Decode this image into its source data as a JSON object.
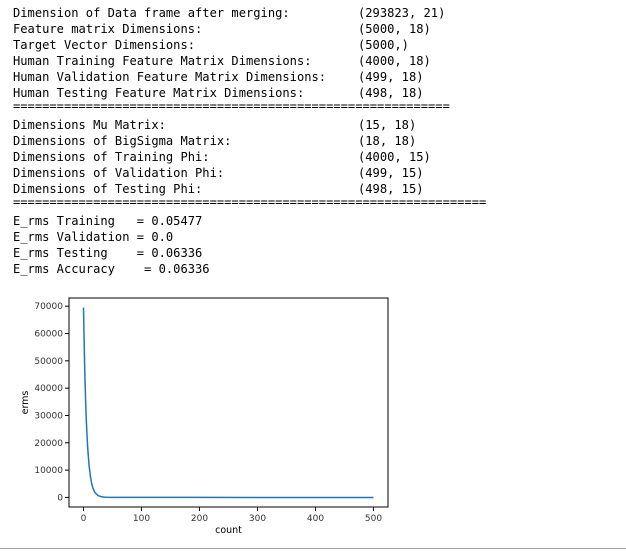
{
  "dimensions_block": [
    {
      "label": "Dimension of Data frame after merging:",
      "value": "(293823, 21)"
    },
    {
      "label": "Feature matrix Dimensions:",
      "value": "(5000, 18)"
    },
    {
      "label": "Target Vector Dimensions:",
      "value": "(5000,)"
    },
    {
      "label": "Human Training Feature Matrix Dimensions:",
      "value": "(4000, 18)"
    },
    {
      "label": "Human Validation Feature Matrix Dimensions:",
      "value": "(499, 18)"
    },
    {
      "label": "Human Testing Feature Matrix Dimensions:",
      "value": "(498, 18)"
    }
  ],
  "separator_1": "============================================================",
  "phi_block": [
    {
      "label": "Dimensions Mu Matrix:",
      "value": "(15, 18)"
    },
    {
      "label": "Dimensions of BigSigma Matrix:",
      "value": "(18, 18)"
    },
    {
      "label": "Dimensions of Training Phi:",
      "value": "(4000, 15)"
    },
    {
      "label": "Dimensions of Validation Phi:",
      "value": "(499, 15)"
    },
    {
      "label": "Dimensions of Testing Phi:",
      "value": "(498, 15)"
    }
  ],
  "separator_2": "=================================================================",
  "erms_block": [
    "E_rms Training   = 0.05477",
    "E_rms Validation = 0.0",
    "E_rms Testing    = 0.06336",
    "E_rms Accuracy    = 0.06336"
  ],
  "colors": {
    "line": "#1f77b4",
    "axes": "#000000",
    "text": "#000000",
    "tick_text": "#333333"
  },
  "chart_data": {
    "type": "line",
    "xlabel": "count",
    "ylabel": "erms",
    "xlim": [
      -25,
      525
    ],
    "ylim": [
      -3500,
      73000
    ],
    "xticks": [
      0,
      100,
      200,
      300,
      400,
      500
    ],
    "yticks": [
      0,
      10000,
      20000,
      30000,
      40000,
      50000,
      60000,
      70000
    ],
    "grid": false,
    "series": [
      {
        "x": [
          0,
          1,
          2,
          3,
          4,
          5,
          6,
          7,
          8,
          9,
          10,
          12,
          14,
          16,
          18,
          20,
          25,
          30,
          35,
          40,
          50,
          100,
          200,
          300,
          400,
          500
        ],
        "values": [
          69500,
          58000,
          48000,
          40000,
          33000,
          27500,
          23000,
          19000,
          16000,
          13300,
          11000,
          7600,
          5200,
          3600,
          2500,
          1700,
          700,
          300,
          130,
          60,
          20,
          5,
          2,
          1,
          1,
          1
        ]
      }
    ]
  }
}
